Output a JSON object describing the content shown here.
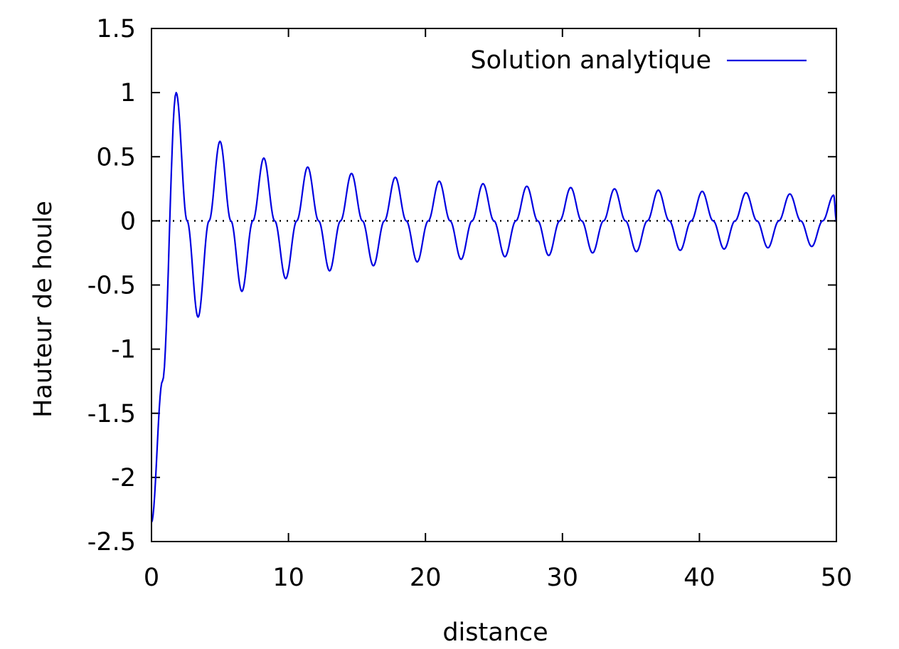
{
  "chart_data": {
    "type": "line",
    "title": "",
    "xlabel": "distance",
    "ylabel": "Hauteur de houle",
    "xlim": [
      0,
      50
    ],
    "ylim": [
      -2.5,
      1.5
    ],
    "xticks": [
      0,
      10,
      20,
      30,
      40,
      50
    ],
    "xtick_labels": [
      "0",
      "10",
      "20",
      "30",
      "40",
      "50"
    ],
    "yticks": [
      1.5,
      1,
      0.5,
      0,
      -0.5,
      -1,
      -1.5,
      -2,
      -2.5
    ],
    "ytick_labels": [
      "1.5",
      "1",
      "0.5",
      "0",
      "-0.5",
      "-1",
      "-1.5",
      "-2",
      "-2.5"
    ],
    "grid": false,
    "legend_position": "top-right",
    "zero_line": {
      "y": 0,
      "style": "dotted",
      "color": "#000000"
    },
    "series": [
      {
        "name": "Solution analytique",
        "color": "#0000e0",
        "x": [
          0.0,
          0.8,
          1.8,
          2.6,
          3.4,
          4.2,
          5.0,
          5.8,
          6.6,
          7.4,
          8.2,
          9.0,
          9.8,
          10.6,
          11.4,
          12.2,
          13.0,
          13.8,
          14.6,
          15.4,
          16.2,
          17.0,
          17.8,
          18.6,
          19.4,
          20.2,
          21.0,
          21.8,
          22.6,
          23.4,
          24.2,
          25.0,
          25.8,
          26.6,
          27.4,
          28.2,
          29.0,
          29.8,
          30.6,
          31.4,
          32.2,
          33.0,
          33.8,
          34.6,
          35.4,
          36.2,
          37.0,
          37.8,
          38.6,
          39.4,
          40.2,
          41.0,
          41.8,
          42.6,
          43.4,
          44.2,
          45.0,
          45.8,
          46.6,
          47.4,
          48.2,
          49.0,
          49.8,
          50.0
        ],
        "y": [
          -2.35,
          -1.25,
          1.0,
          0.0,
          -0.75,
          0.0,
          0.62,
          0.0,
          -0.55,
          0.0,
          0.49,
          0.0,
          -0.45,
          0.0,
          0.42,
          0.0,
          -0.39,
          0.0,
          0.37,
          0.0,
          -0.35,
          0.0,
          0.34,
          0.0,
          -0.32,
          0.0,
          0.31,
          0.0,
          -0.3,
          0.0,
          0.29,
          0.0,
          -0.28,
          0.0,
          0.27,
          0.0,
          -0.27,
          0.0,
          0.26,
          0.0,
          -0.25,
          0.0,
          0.25,
          0.0,
          -0.24,
          0.0,
          0.24,
          0.0,
          -0.23,
          0.0,
          0.23,
          0.0,
          -0.22,
          0.0,
          0.22,
          0.0,
          -0.21,
          0.0,
          0.21,
          0.0,
          -0.2,
          0.0,
          0.2,
          0.0
        ]
      }
    ]
  }
}
